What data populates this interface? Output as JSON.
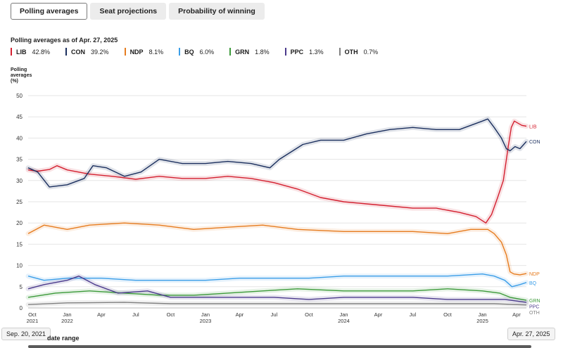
{
  "tabs": [
    {
      "label": "Polling averages",
      "active": true
    },
    {
      "label": "Seat projections",
      "active": false
    },
    {
      "label": "Probability of winning",
      "active": false
    }
  ],
  "asof": "Polling averages as of Apr. 27, 2025",
  "legend": [
    {
      "name": "LIB",
      "value": "42.8%",
      "color": "#d42030"
    },
    {
      "name": "CON",
      "value": "39.2%",
      "color": "#1b2f5e"
    },
    {
      "name": "NDP",
      "value": "8.1%",
      "color": "#e67c1f"
    },
    {
      "name": "BQ",
      "value": "6.0%",
      "color": "#3b9ee8"
    },
    {
      "name": "GRN",
      "value": "1.8%",
      "color": "#3c9a3a"
    },
    {
      "name": "PPC",
      "value": "1.3%",
      "color": "#4b3a8c"
    },
    {
      "name": "OTH",
      "value": "0.7%",
      "color": "#808080"
    }
  ],
  "ytitle": [
    "Polling",
    "averages",
    "(%)"
  ],
  "range": {
    "start": "Sep. 20, 2021",
    "end": "Apr. 27, 2025",
    "label": "date range"
  },
  "chart_data": {
    "type": "line",
    "ylim": [
      0,
      50
    ],
    "yticks": [
      0,
      5,
      10,
      15,
      20,
      25,
      30,
      35,
      40,
      45,
      50
    ],
    "xlim": [
      "2021-09-20",
      "2025-04-27"
    ],
    "xticks": [
      {
        "date": "2021-10-01",
        "label": [
          "Oct",
          "2021"
        ]
      },
      {
        "date": "2022-01-01",
        "label": [
          "Jan",
          "2022"
        ]
      },
      {
        "date": "2022-04-01",
        "label": [
          "Apr"
        ]
      },
      {
        "date": "2022-07-01",
        "label": [
          "Jul"
        ]
      },
      {
        "date": "2022-10-01",
        "label": [
          "Oct"
        ]
      },
      {
        "date": "2023-01-01",
        "label": [
          "Jan",
          "2023"
        ]
      },
      {
        "date": "2023-04-01",
        "label": [
          "Apr"
        ]
      },
      {
        "date": "2023-07-01",
        "label": [
          "Jul"
        ]
      },
      {
        "date": "2023-10-01",
        "label": [
          "Oct"
        ]
      },
      {
        "date": "2024-01-01",
        "label": [
          "Jan",
          "2024"
        ]
      },
      {
        "date": "2024-04-01",
        "label": [
          "Apr"
        ]
      },
      {
        "date": "2024-07-01",
        "label": [
          "Jul"
        ]
      },
      {
        "date": "2024-10-01",
        "label": [
          "Oct"
        ]
      },
      {
        "date": "2025-01-01",
        "label": [
          "Jan",
          "2025"
        ]
      },
      {
        "date": "2025-04-01",
        "label": [
          "Apr"
        ]
      }
    ],
    "series": [
      {
        "name": "LIB",
        "color": "#d42030",
        "points": [
          [
            "2021-09-20",
            32.5
          ],
          [
            "2021-10-15",
            32.2
          ],
          [
            "2021-11-15",
            32.6
          ],
          [
            "2021-12-05",
            33.5
          ],
          [
            "2022-01-01",
            32.5
          ],
          [
            "2022-03-01",
            31.5
          ],
          [
            "2022-05-01",
            31.0
          ],
          [
            "2022-07-01",
            30.3
          ],
          [
            "2022-09-01",
            31.0
          ],
          [
            "2022-11-01",
            30.5
          ],
          [
            "2023-01-01",
            30.5
          ],
          [
            "2023-03-01",
            31.0
          ],
          [
            "2023-05-01",
            30.5
          ],
          [
            "2023-07-01",
            29.5
          ],
          [
            "2023-09-01",
            28.0
          ],
          [
            "2023-11-01",
            26.0
          ],
          [
            "2024-01-01",
            25.0
          ],
          [
            "2024-03-01",
            24.5
          ],
          [
            "2024-05-01",
            24.0
          ],
          [
            "2024-07-01",
            23.5
          ],
          [
            "2024-09-01",
            23.5
          ],
          [
            "2024-11-01",
            22.5
          ],
          [
            "2024-12-15",
            21.5
          ],
          [
            "2025-01-10",
            20.0
          ],
          [
            "2025-01-25",
            22.0
          ],
          [
            "2025-02-10",
            26.0
          ],
          [
            "2025-02-25",
            30.0
          ],
          [
            "2025-03-10",
            38.0
          ],
          [
            "2025-03-18",
            42.5
          ],
          [
            "2025-03-26",
            44.0
          ],
          [
            "2025-04-05",
            43.5
          ],
          [
            "2025-04-15",
            43.0
          ],
          [
            "2025-04-27",
            42.8
          ]
        ]
      },
      {
        "name": "CON",
        "color": "#1b2f5e",
        "points": [
          [
            "2021-09-20",
            33.0
          ],
          [
            "2021-10-15",
            32.0
          ],
          [
            "2021-11-15",
            28.5
          ],
          [
            "2022-01-01",
            29.0
          ],
          [
            "2022-02-15",
            30.5
          ],
          [
            "2022-03-10",
            33.5
          ],
          [
            "2022-04-15",
            33.0
          ],
          [
            "2022-06-01",
            31.0
          ],
          [
            "2022-07-15",
            32.0
          ],
          [
            "2022-09-01",
            35.0
          ],
          [
            "2022-11-01",
            34.0
          ],
          [
            "2023-01-01",
            34.0
          ],
          [
            "2023-03-01",
            34.5
          ],
          [
            "2023-05-01",
            34.0
          ],
          [
            "2023-06-20",
            33.0
          ],
          [
            "2023-07-15",
            35.0
          ],
          [
            "2023-09-15",
            38.5
          ],
          [
            "2023-11-01",
            39.5
          ],
          [
            "2024-01-01",
            39.5
          ],
          [
            "2024-03-01",
            41.0
          ],
          [
            "2024-05-01",
            42.0
          ],
          [
            "2024-07-01",
            42.5
          ],
          [
            "2024-09-01",
            42.0
          ],
          [
            "2024-11-01",
            42.0
          ],
          [
            "2025-01-01",
            44.0
          ],
          [
            "2025-01-15",
            44.5
          ],
          [
            "2025-02-01",
            42.5
          ],
          [
            "2025-02-20",
            40.0
          ],
          [
            "2025-03-05",
            37.5
          ],
          [
            "2025-03-15",
            37.0
          ],
          [
            "2025-03-28",
            38.0
          ],
          [
            "2025-04-10",
            37.5
          ],
          [
            "2025-04-20",
            38.5
          ],
          [
            "2025-04-27",
            39.2
          ]
        ]
      },
      {
        "name": "NDP",
        "color": "#e67c1f",
        "points": [
          [
            "2021-09-20",
            17.5
          ],
          [
            "2021-11-01",
            19.5
          ],
          [
            "2022-01-01",
            18.5
          ],
          [
            "2022-03-01",
            19.5
          ],
          [
            "2022-06-01",
            20.0
          ],
          [
            "2022-09-01",
            19.5
          ],
          [
            "2022-12-01",
            18.5
          ],
          [
            "2023-03-01",
            19.0
          ],
          [
            "2023-06-01",
            19.5
          ],
          [
            "2023-09-01",
            18.5
          ],
          [
            "2024-01-01",
            18.0
          ],
          [
            "2024-04-01",
            18.0
          ],
          [
            "2024-07-01",
            18.0
          ],
          [
            "2024-10-01",
            17.5
          ],
          [
            "2024-12-01",
            18.5
          ],
          [
            "2025-01-15",
            18.5
          ],
          [
            "2025-02-01",
            17.5
          ],
          [
            "2025-02-20",
            15.5
          ],
          [
            "2025-03-05",
            12.5
          ],
          [
            "2025-03-15",
            8.5
          ],
          [
            "2025-03-25",
            8.0
          ],
          [
            "2025-04-10",
            7.8
          ],
          [
            "2025-04-27",
            8.1
          ]
        ]
      },
      {
        "name": "BQ",
        "color": "#3b9ee8",
        "points": [
          [
            "2021-09-20",
            7.5
          ],
          [
            "2021-11-01",
            6.5
          ],
          [
            "2022-01-01",
            7.0
          ],
          [
            "2022-04-01",
            7.0
          ],
          [
            "2022-07-01",
            6.5
          ],
          [
            "2022-10-01",
            6.5
          ],
          [
            "2023-01-01",
            6.5
          ],
          [
            "2023-04-01",
            7.0
          ],
          [
            "2023-07-01",
            7.0
          ],
          [
            "2023-10-01",
            7.0
          ],
          [
            "2024-01-01",
            7.5
          ],
          [
            "2024-04-01",
            7.5
          ],
          [
            "2024-07-01",
            7.5
          ],
          [
            "2024-10-01",
            7.5
          ],
          [
            "2025-01-01",
            8.0
          ],
          [
            "2025-02-01",
            7.5
          ],
          [
            "2025-03-01",
            6.5
          ],
          [
            "2025-03-20",
            5.0
          ],
          [
            "2025-04-10",
            5.5
          ],
          [
            "2025-04-27",
            6.0
          ]
        ]
      },
      {
        "name": "GRN",
        "color": "#3c9a3a",
        "points": [
          [
            "2021-09-20",
            2.5
          ],
          [
            "2021-12-01",
            3.5
          ],
          [
            "2022-03-01",
            4.0
          ],
          [
            "2022-06-01",
            3.5
          ],
          [
            "2022-09-01",
            3.0
          ],
          [
            "2022-12-01",
            3.0
          ],
          [
            "2023-03-01",
            3.5
          ],
          [
            "2023-06-01",
            4.0
          ],
          [
            "2023-09-01",
            4.5
          ],
          [
            "2024-01-01",
            4.0
          ],
          [
            "2024-04-01",
            4.0
          ],
          [
            "2024-07-01",
            4.0
          ],
          [
            "2024-10-01",
            4.5
          ],
          [
            "2025-01-01",
            4.0
          ],
          [
            "2025-02-15",
            3.5
          ],
          [
            "2025-03-15",
            2.5
          ],
          [
            "2025-04-27",
            1.8
          ]
        ]
      },
      {
        "name": "PPC",
        "color": "#4b3a8c",
        "points": [
          [
            "2021-09-20",
            4.5
          ],
          [
            "2021-11-01",
            5.5
          ],
          [
            "2022-01-01",
            6.5
          ],
          [
            "2022-02-01",
            7.5
          ],
          [
            "2022-03-15",
            5.5
          ],
          [
            "2022-05-15",
            3.5
          ],
          [
            "2022-08-01",
            4.0
          ],
          [
            "2022-10-01",
            2.5
          ],
          [
            "2023-01-01",
            2.5
          ],
          [
            "2023-04-01",
            2.5
          ],
          [
            "2023-07-01",
            2.5
          ],
          [
            "2023-10-01",
            2.0
          ],
          [
            "2024-01-01",
            2.5
          ],
          [
            "2024-04-01",
            2.5
          ],
          [
            "2024-07-01",
            2.5
          ],
          [
            "2024-10-01",
            2.0
          ],
          [
            "2025-01-01",
            2.0
          ],
          [
            "2025-03-01",
            2.0
          ],
          [
            "2025-04-27",
            1.3
          ]
        ]
      },
      {
        "name": "OTH",
        "color": "#808080",
        "points": [
          [
            "2021-09-20",
            0.8
          ],
          [
            "2022-01-01",
            1.2
          ],
          [
            "2022-06-01",
            1.3
          ],
          [
            "2022-10-01",
            1.0
          ],
          [
            "2023-02-01",
            1.0
          ],
          [
            "2023-07-01",
            1.0
          ],
          [
            "2023-12-01",
            1.0
          ],
          [
            "2024-05-01",
            1.0
          ],
          [
            "2024-10-01",
            1.0
          ],
          [
            "2025-02-01",
            1.0
          ],
          [
            "2025-04-27",
            0.7
          ]
        ]
      }
    ]
  }
}
